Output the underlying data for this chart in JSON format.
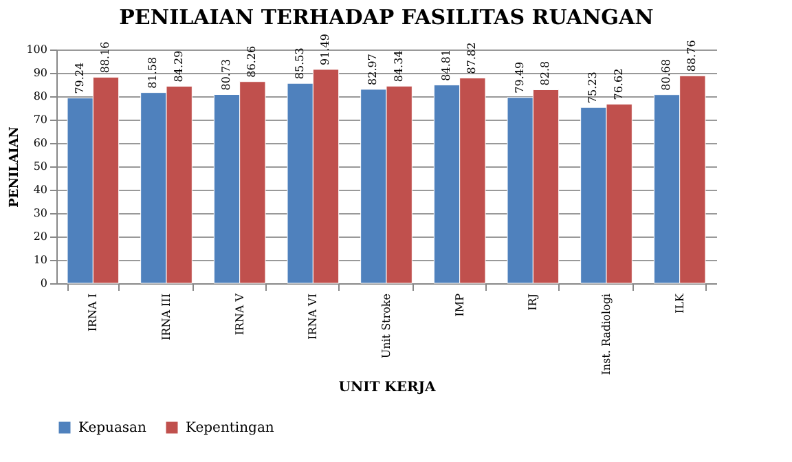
{
  "chart_data": {
    "type": "bar",
    "title": "PENILAIAN TERHADAP FASILITAS RUANGAN",
    "xlabel": "UNIT KERJA",
    "ylabel": "PENILAIAN",
    "categories": [
      "IRNA I",
      "IRNA III",
      "IRNA V",
      "IRNA VI",
      "Unit Stroke",
      "IMP",
      "IRJ",
      "Inst. Radiologi",
      "ILK"
    ],
    "series": [
      {
        "name": "Kepuasan",
        "color": "#4f81bd",
        "values": [
          79.24,
          81.58,
          80.73,
          85.53,
          82.97,
          84.81,
          79.49,
          75.23,
          80.68
        ]
      },
      {
        "name": "Kepentingan",
        "color": "#c0504d",
        "values": [
          88.16,
          84.29,
          86.26,
          91.49,
          84.34,
          87.82,
          82.8,
          76.62,
          88.76
        ]
      }
    ],
    "ylim": [
      0,
      100
    ],
    "yticks": [
      0,
      10,
      20,
      30,
      40,
      50,
      60,
      70,
      80,
      90,
      100
    ],
    "grid": "y",
    "legend": "bottom",
    "data_labels": true
  }
}
